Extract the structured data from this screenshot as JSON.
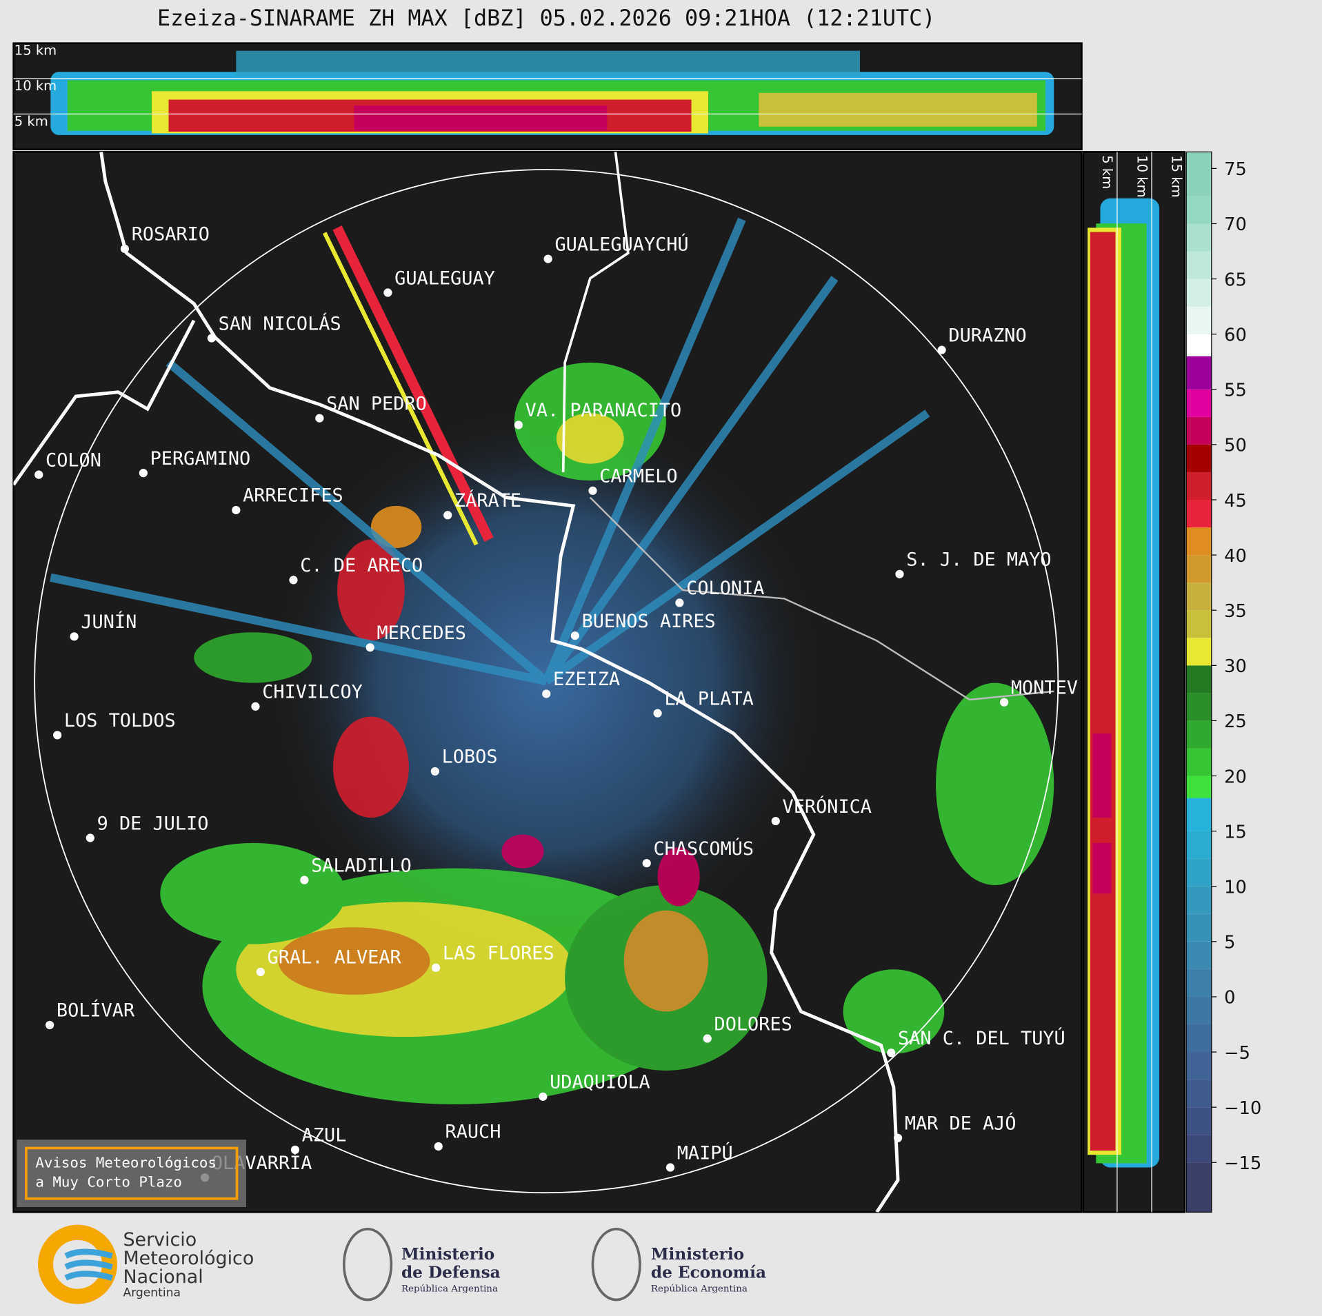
{
  "header": {
    "title": "Ezeiza-SINARAME ZH MAX [dBZ] 05.02.2026 09:21HOA (12:21UTC)"
  },
  "cross_section_top": {
    "height_labels": [
      "15 km",
      "10 km",
      "5 km"
    ]
  },
  "cross_section_side": {
    "height_labels": [
      "5 km",
      "10 km",
      "15 km"
    ]
  },
  "map": {
    "cities": [
      "ROSARIO",
      "GUALEGUAYCHÚ",
      "GUALEGUAY",
      "SAN NICOLÁS",
      "DURAZNO",
      "SAN PEDRO",
      "VA. PARANACITO",
      "COLON",
      "PERGAMINO",
      "CARMELO",
      "ZÁRATE",
      "ARRECIFES",
      "S. J. DE MAYO",
      "C. DE ARECO",
      "COLONIA",
      "BUENOS AIRES",
      "JUNÍN",
      "MERCEDES",
      "EZEIZA",
      "MONTEV",
      "CHIVILCOY",
      "LA PLATA",
      "LOS TOLDOS",
      "LOBOS",
      "VERÓNICA",
      "9 DE JULIO",
      "CHASCOMÚS",
      "SALADILLO",
      "GRAL. ALVEAR",
      "LAS FLORES",
      "BOLÍVAR",
      "DOLORES",
      "SAN C. DEL TUYÚ",
      "UDAQUIOLA",
      "MAR DE AJÓ",
      "AZUL",
      "RAUCH",
      "OLAVARRÍA",
      "MAIPÚ"
    ]
  },
  "warning_box": {
    "lines": [
      "Avisos Meteorológicos",
      "a Muy Corto Plazo"
    ]
  },
  "colorbar": {
    "ylim": [
      -19.5,
      76.5
    ],
    "yticks": [
      {
        "value": -15,
        "label": "−15"
      },
      {
        "value": -10,
        "label": "−10"
      },
      {
        "value": -5,
        "label": "−5"
      },
      0,
      5,
      10,
      15,
      20,
      25,
      30,
      35,
      40,
      45,
      50,
      55,
      60,
      65,
      70,
      75
    ],
    "bands": [
      {
        "from": -19.5,
        "color": "#393f68"
      },
      {
        "from": -15,
        "color": "#3c4877"
      },
      {
        "from": -12.5,
        "color": "#3e5183"
      },
      {
        "from": -10,
        "color": "#3f5a8d"
      },
      {
        "from": -7.5,
        "color": "#3f6495"
      },
      {
        "from": -5,
        "color": "#3f6d9b"
      },
      {
        "from": -2.5,
        "color": "#3e77a2"
      },
      {
        "from": 0,
        "color": "#3c80a9"
      },
      {
        "from": 2.5,
        "color": "#3a89b0"
      },
      {
        "from": 5,
        "color": "#3792b8"
      },
      {
        "from": 7.5,
        "color": "#3399bf"
      },
      {
        "from": 10,
        "color": "#2ea2c7"
      },
      {
        "from": 12.5,
        "color": "#2aabd0"
      },
      {
        "from": 15,
        "color": "#25b3d9"
      },
      {
        "from": 18,
        "color": "#3de33a"
      },
      {
        "from": 20,
        "color": "#36c635"
      },
      {
        "from": 22.5,
        "color": "#2fa92e"
      },
      {
        "from": 25,
        "color": "#2b8f29"
      },
      {
        "from": 27.5,
        "color": "#247a22"
      },
      {
        "from": 30,
        "color": "#e8e833"
      },
      {
        "from": 32.5,
        "color": "#c8c038"
      },
      {
        "from": 35,
        "color": "#c9b03c"
      },
      {
        "from": 37.5,
        "color": "#d29a2c"
      },
      {
        "from": 40,
        "color": "#e08d1f"
      },
      {
        "from": 42.5,
        "color": "#e8243a"
      },
      {
        "from": 45,
        "color": "#d01e2c"
      },
      {
        "from": 47.5,
        "color": "#a40000"
      },
      {
        "from": 50,
        "color": "#c4005a"
      },
      {
        "from": 52.5,
        "color": "#e000a0"
      },
      {
        "from": 55,
        "color": "#9c009c"
      },
      {
        "from": 58,
        "color": "#ffffff"
      },
      {
        "from": 60,
        "color": "#e8f8f0"
      },
      {
        "from": 62.5,
        "color": "#d4f0e4"
      },
      {
        "from": 65,
        "color": "#bfe8d8"
      },
      {
        "from": 67.5,
        "color": "#aae0cc"
      },
      {
        "from": 70,
        "color": "#95d8c0"
      },
      {
        "from": 72.5,
        "color": "#8ad2b8"
      }
    ]
  },
  "footer": {
    "logos": [
      {
        "lines": [
          "Servicio",
          "Meteorológico",
          "Nacional",
          "Argentina"
        ]
      },
      {
        "lines": [
          "Ministerio",
          "de Defensa",
          "República Argentina"
        ]
      },
      {
        "lines": [
          "Ministerio",
          "de Economía",
          "República Argentina"
        ]
      }
    ]
  }
}
